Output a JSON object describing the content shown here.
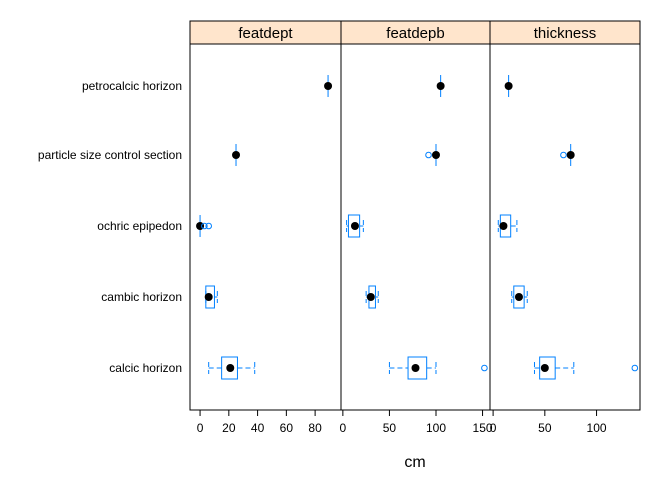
{
  "chart_data": {
    "type": "boxplot",
    "xlabel": "cm",
    "categories": [
      "petrocalcic horizon",
      "particle size control section",
      "ochric epipedon",
      "cambic horizon",
      "calcic horizon"
    ],
    "panels": [
      {
        "name": "featdept",
        "xlim": [
          -7,
          98
        ],
        "ticks": [
          0,
          20,
          40,
          60,
          80
        ],
        "boxes": [
          {
            "category": "petrocalcic horizon",
            "min": 89,
            "q1": 89,
            "median": 89,
            "q3": 89,
            "max": 89,
            "outliers": []
          },
          {
            "category": "particle size control section",
            "min": 25,
            "q1": 25,
            "median": 25,
            "q3": 25,
            "max": 25,
            "outliers": []
          },
          {
            "category": "ochric epipedon",
            "min": 0,
            "q1": 0,
            "median": 0,
            "q3": 0,
            "max": 0,
            "outliers": [
              3,
              6
            ]
          },
          {
            "category": "cambic horizon",
            "min": 4,
            "q1": 4,
            "median": 6,
            "q3": 10,
            "max": 12,
            "outliers": []
          },
          {
            "category": "calcic horizon",
            "min": 6,
            "q1": 15,
            "median": 21,
            "q3": 26,
            "max": 38,
            "outliers": []
          }
        ]
      },
      {
        "name": "featdepb",
        "xlim": [
          -2,
          158
        ],
        "ticks": [
          0,
          50,
          100,
          150
        ],
        "boxes": [
          {
            "category": "petrocalcic horizon",
            "min": 105,
            "q1": 105,
            "median": 105,
            "q3": 105,
            "max": 105,
            "outliers": []
          },
          {
            "category": "particle size control section",
            "min": 100,
            "q1": 100,
            "median": 100,
            "q3": 100,
            "max": 100,
            "outliers": [
              92
            ]
          },
          {
            "category": "ochric epipedon",
            "min": 4,
            "q1": 6,
            "median": 13,
            "q3": 18,
            "max": 22,
            "outliers": []
          },
          {
            "category": "cambic horizon",
            "min": 25,
            "q1": 28,
            "median": 30,
            "q3": 35,
            "max": 38,
            "outliers": []
          },
          {
            "category": "calcic horizon",
            "min": 50,
            "q1": 70,
            "median": 78,
            "q3": 90,
            "max": 100,
            "outliers": [
              152
            ]
          }
        ]
      },
      {
        "name": "thickness",
        "xlim": [
          -3,
          142
        ],
        "ticks": [
          0,
          50,
          100
        ],
        "boxes": [
          {
            "category": "petrocalcic horizon",
            "min": 15,
            "q1": 15,
            "median": 15,
            "q3": 15,
            "max": 15,
            "outliers": []
          },
          {
            "category": "particle size control section",
            "min": 75,
            "q1": 75,
            "median": 75,
            "q3": 75,
            "max": 75,
            "outliers": [
              68
            ]
          },
          {
            "category": "ochric epipedon",
            "min": 5,
            "q1": 7,
            "median": 10,
            "q3": 17,
            "max": 23,
            "outliers": []
          },
          {
            "category": "cambic horizon",
            "min": 18,
            "q1": 20,
            "median": 25,
            "q3": 30,
            "max": 33,
            "outliers": []
          },
          {
            "category": "calcic horizon",
            "min": 40,
            "q1": 45,
            "median": 50,
            "q3": 60,
            "max": 78,
            "outliers": [
              137
            ]
          }
        ]
      }
    ]
  }
}
